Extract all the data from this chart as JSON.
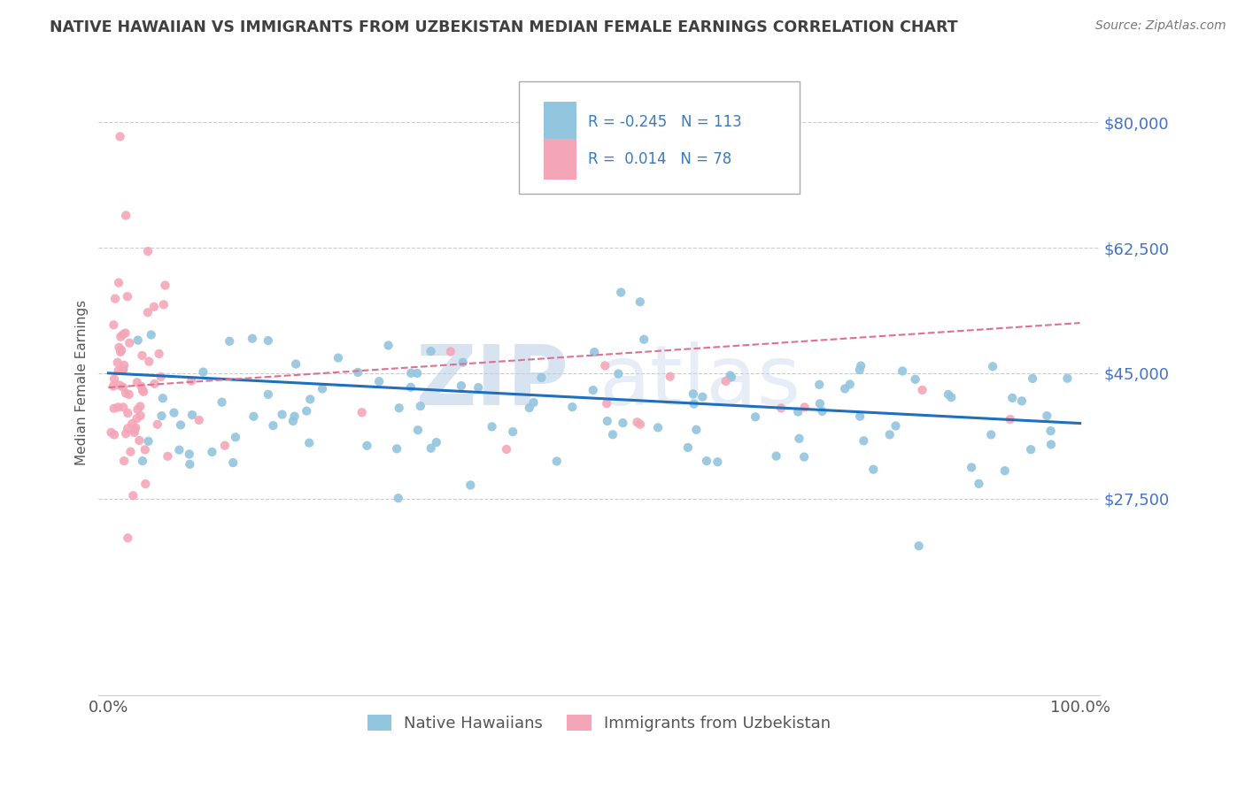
{
  "title": "NATIVE HAWAIIAN VS IMMIGRANTS FROM UZBEKISTAN MEDIAN FEMALE EARNINGS CORRELATION CHART",
  "source": "Source: ZipAtlas.com",
  "ylabel": "Median Female Earnings",
  "ylim": [
    0,
    87500
  ],
  "xlim": [
    0.0,
    1.0
  ],
  "blue_R": -0.245,
  "blue_N": 113,
  "pink_R": 0.014,
  "pink_N": 78,
  "blue_color": "#92c5de",
  "pink_color": "#f4a6b8",
  "blue_line_color": "#1f6fbf",
  "pink_line_color": "#e07090",
  "legend_label_blue": "Native Hawaiians",
  "legend_label_pink": "Immigrants from Uzbekistan",
  "title_color": "#404040",
  "ytick_color": "#4472C4",
  "xtick_color": "#555555",
  "grid_color": "#cccccc",
  "ylabel_color": "#555555",
  "ytick_positions": [
    27500,
    45000,
    62500,
    80000
  ],
  "ytick_labels": [
    "$27,500",
    "$45,000",
    "$62,500",
    "$80,000"
  ],
  "xtick_positions": [
    0.0,
    1.0
  ],
  "xtick_labels": [
    "0.0%",
    "100.0%"
  ]
}
